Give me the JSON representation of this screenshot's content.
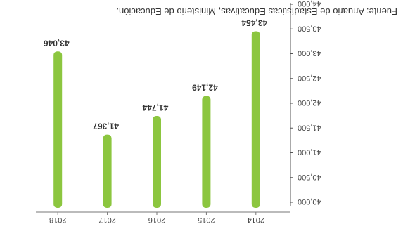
{
  "chart_data": {
    "type": "bar",
    "categories": [
      "2014",
      "2015",
      "2016",
      "2017",
      "2018"
    ],
    "values": [
      43454,
      42149,
      41744,
      41367,
      43046
    ],
    "value_labels": [
      "43,454",
      "42,149",
      "41,744",
      "41,367",
      "43,046"
    ],
    "ylim": [
      40000,
      44000
    ],
    "yticks": [
      40000,
      40500,
      41000,
      41500,
      42000,
      42500,
      43000,
      43500,
      44000
    ],
    "ytick_labels": [
      "40,000",
      "40,500",
      "41,000",
      "41,500",
      "42,000",
      "42,500",
      "43,000",
      "43,500",
      "44,000"
    ],
    "bar_color": "#8cc63f",
    "grid": false
  },
  "source_note": "Fuente: Anuario de Estadísticas Educativas, Ministerio de Educación."
}
